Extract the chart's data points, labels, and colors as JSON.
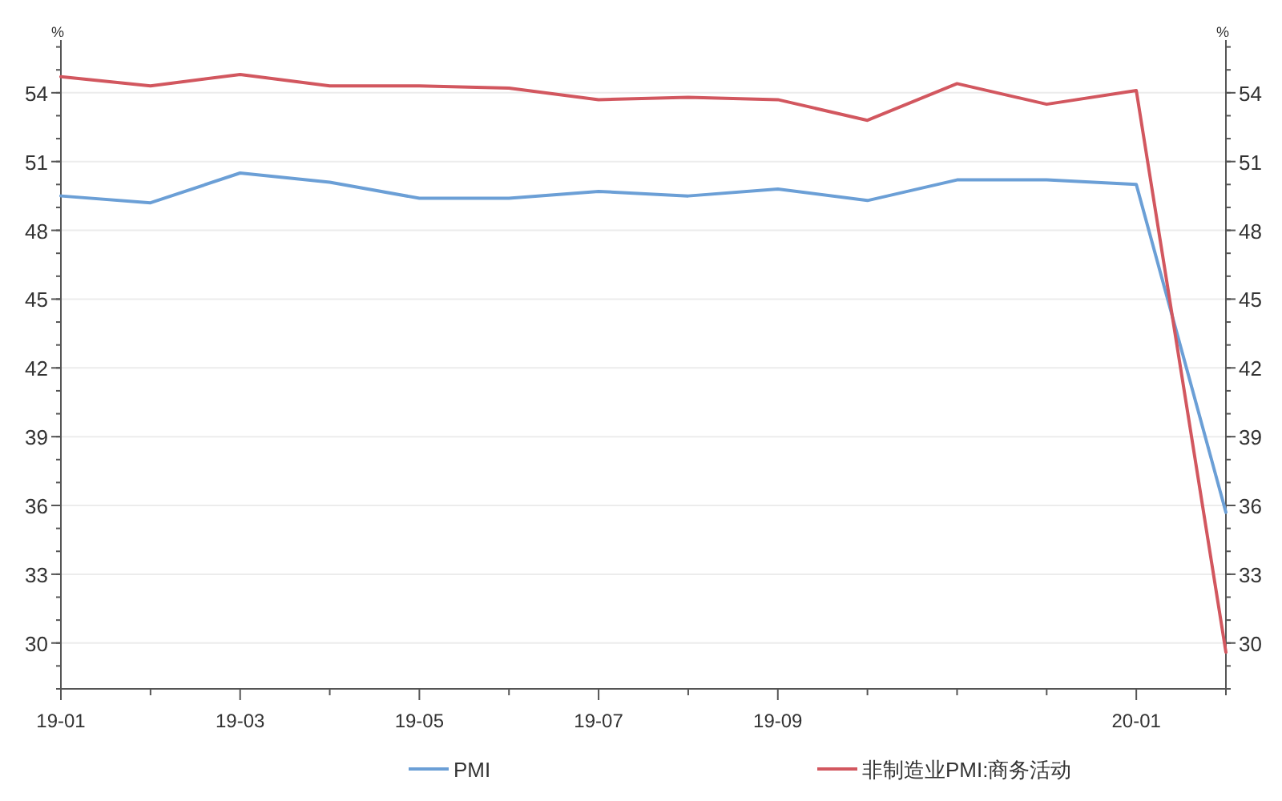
{
  "chart_data": {
    "type": "line",
    "categories": [
      "19-01",
      null,
      "19-03",
      null,
      "19-05",
      null,
      "19-07",
      null,
      "19-09",
      null,
      null,
      null,
      "20-01",
      null
    ],
    "series": [
      {
        "name": "PMI",
        "color": "#6b9fd6",
        "values": [
          49.5,
          49.2,
          50.5,
          50.1,
          49.4,
          49.4,
          49.7,
          49.5,
          49.8,
          49.3,
          50.2,
          50.2,
          50.0,
          35.7
        ]
      },
      {
        "name": "非制造业PMI:商务活动",
        "color": "#d2575f",
        "values": [
          54.7,
          54.3,
          54.8,
          54.3,
          54.3,
          54.2,
          53.7,
          53.8,
          53.7,
          52.8,
          54.4,
          53.5,
          54.1,
          29.6
        ]
      }
    ],
    "ylabel": "%",
    "y2label": "%",
    "ylim": [
      28,
      56.3
    ],
    "yticks": [
      30,
      33,
      36,
      39,
      42,
      45,
      48,
      51,
      54
    ],
    "y2lim": [
      28,
      56.3
    ],
    "y2ticks": [
      30,
      33,
      36,
      39,
      42,
      45,
      48,
      51,
      54
    ],
    "grid": "y",
    "legend": "bottom",
    "marker": "none",
    "line_style": "solid"
  }
}
